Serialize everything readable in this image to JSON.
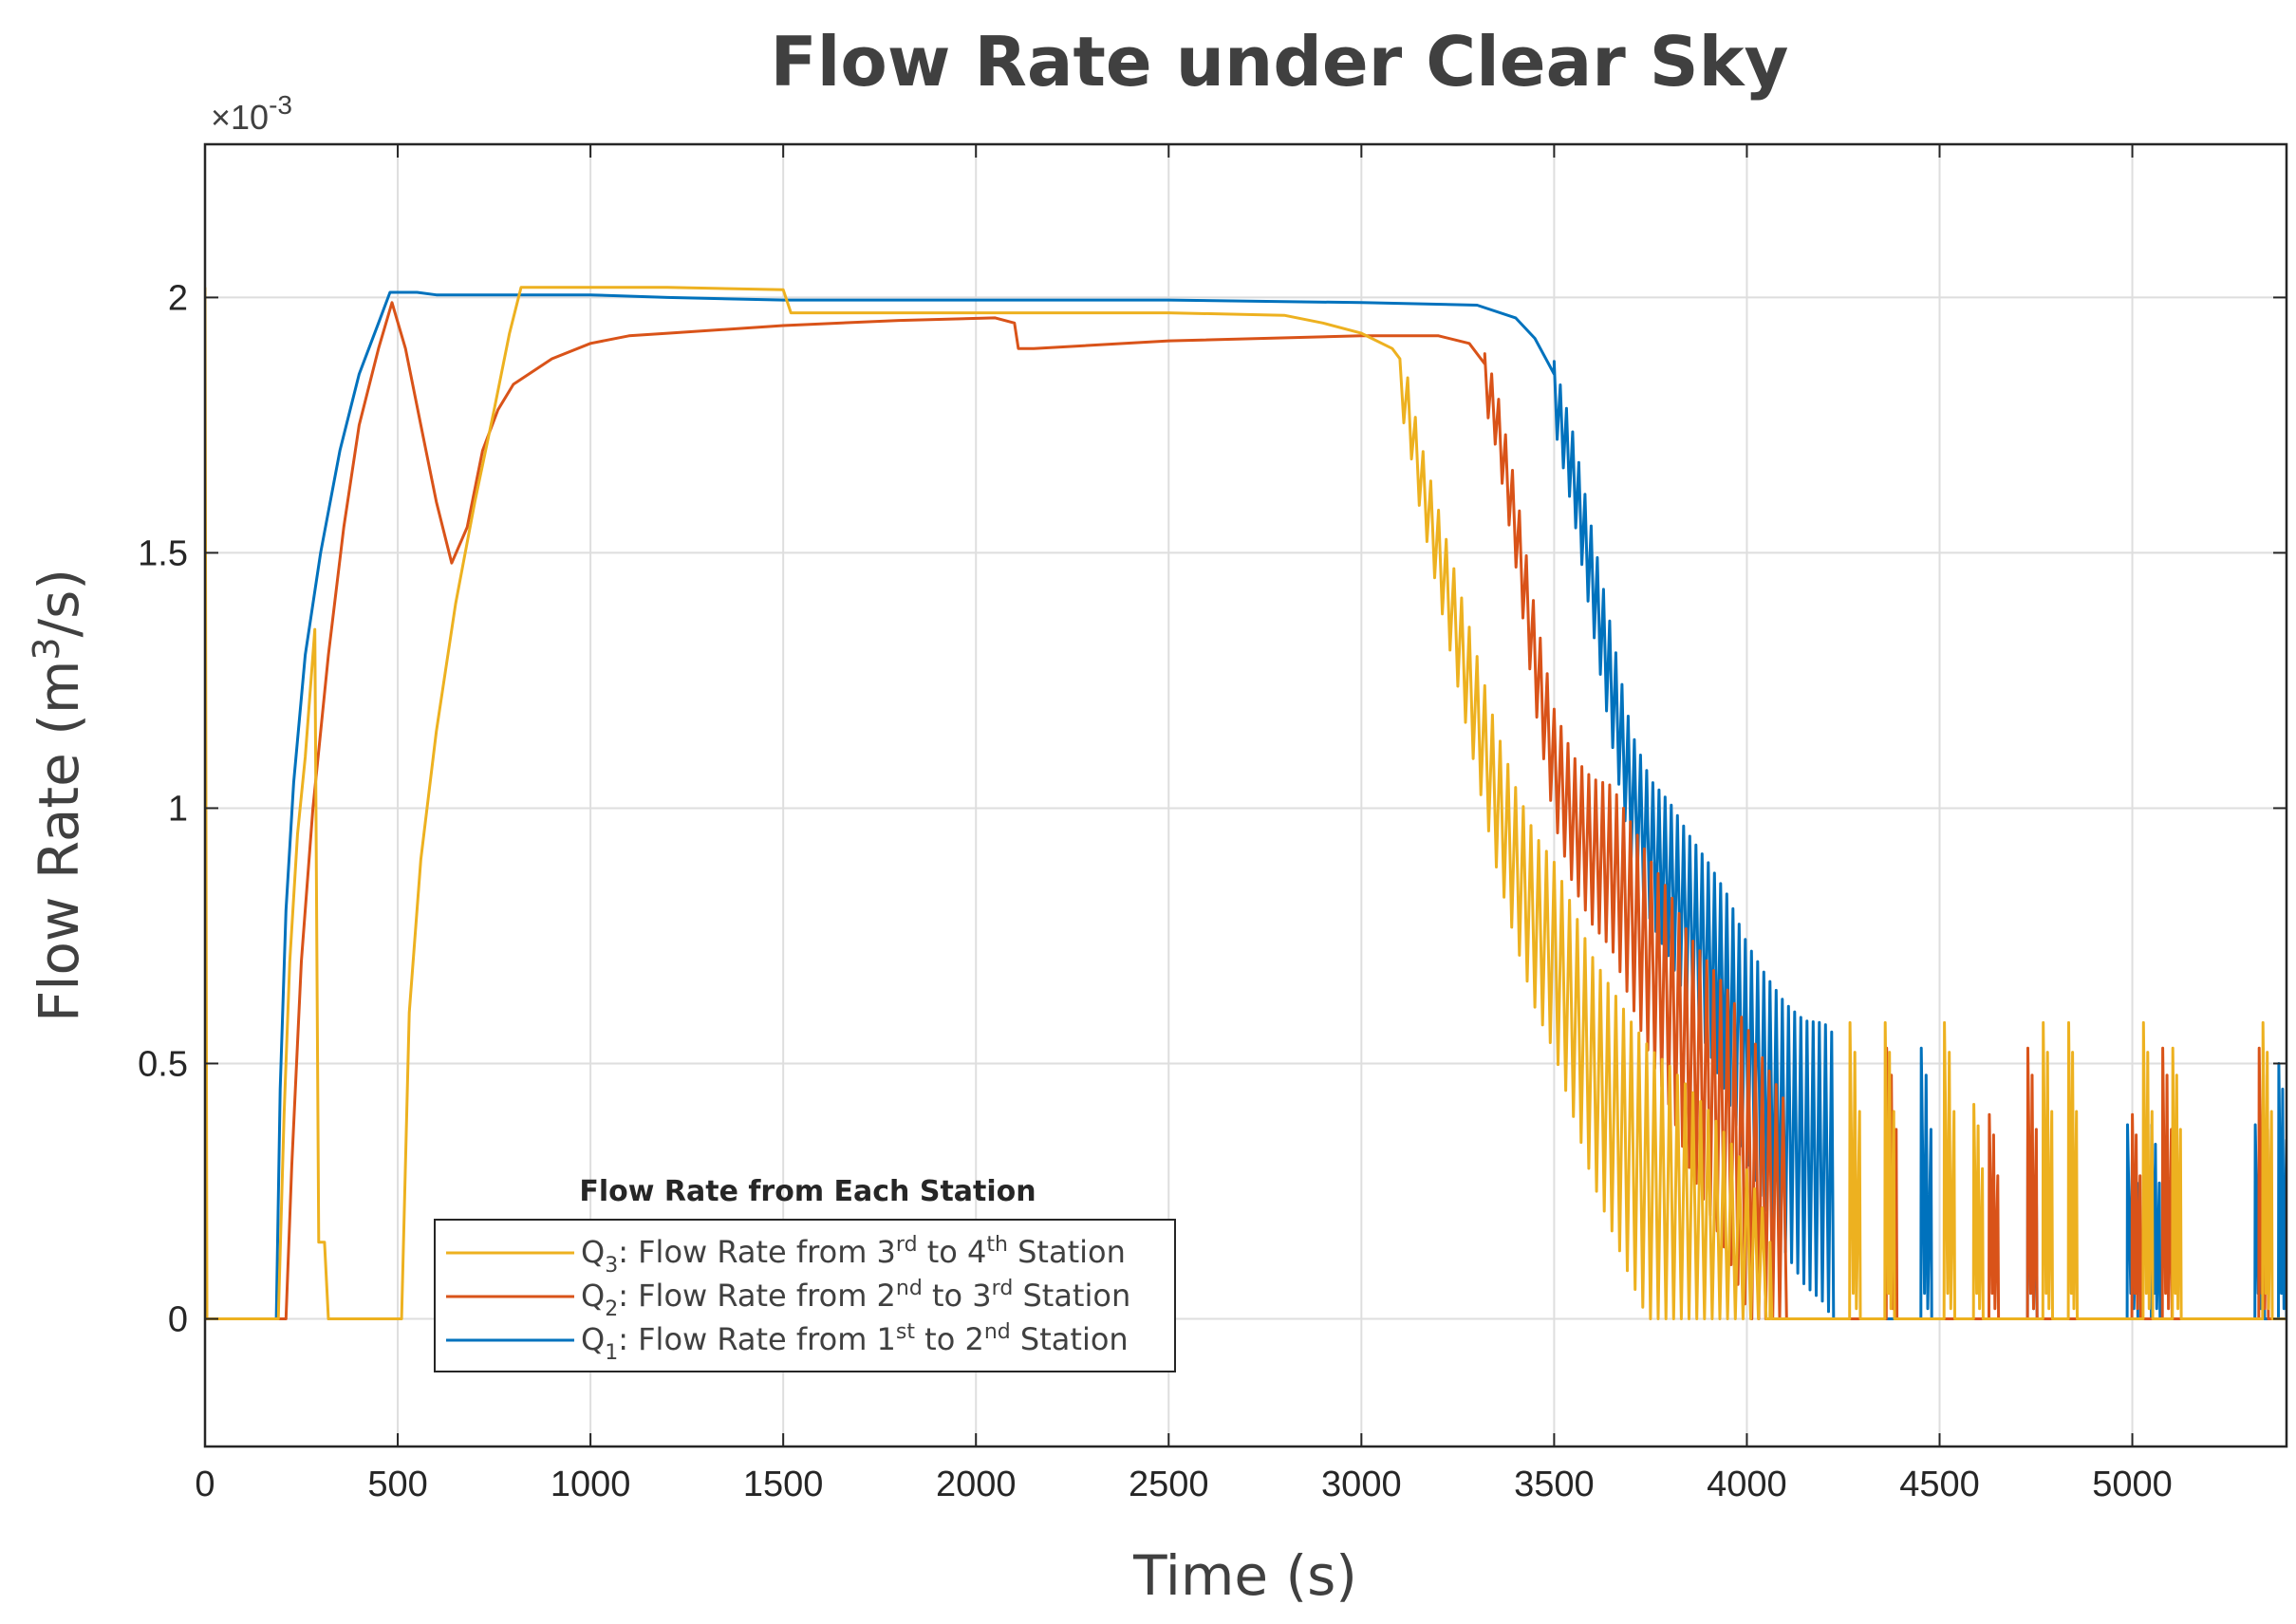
{
  "chart_data": {
    "type": "line",
    "title": "Flow Rate under Clear Sky",
    "xlabel": "Time (s)",
    "ylabel_prefix": "Flow Rate (m",
    "ylabel_sup": "3",
    "ylabel_suffix": "/s)",
    "y_exponent_prefix": "×10",
    "y_exponent_power": "-3",
    "xlim": [
      0,
      5400
    ],
    "ylim": [
      -0.25,
      2.3
    ],
    "xticks": [
      0,
      500,
      1000,
      1500,
      2000,
      2500,
      3000,
      3500,
      4000,
      4500,
      5000
    ],
    "xtick_labels": [
      "0",
      "500",
      "1000",
      "1500",
      "2000",
      "2500",
      "3000",
      "3500",
      "4000",
      "4500",
      "5000"
    ],
    "yticks": [
      0,
      0.5,
      1,
      1.5,
      2
    ],
    "ytick_labels": [
      "0",
      "0.5",
      "1",
      "1.5",
      "2"
    ],
    "grid": true,
    "legend": {
      "title": "Flow Rate from Each Station",
      "position": "bottom-left",
      "entries": [
        {
          "key": "q3",
          "sym": "Q",
          "sub": "3",
          "text_a": ": Flow Rate from 3",
          "sup_a": "rd",
          "text_b": " to 4",
          "sup_b": "th",
          "text_c": " Station"
        },
        {
          "key": "q2",
          "sym": "Q",
          "sub": "2",
          "text_a": ": Flow Rate from 2",
          "sup_a": "nd",
          "text_b": " to 3",
          "sup_b": "rd",
          "text_c": " Station"
        },
        {
          "key": "q1",
          "sym": "Q",
          "sub": "1",
          "text_a": ": Flow Rate from 1",
          "sup_a": "st",
          "text_b": " to 2",
          "sup_b": "nd",
          "text_c": " Station"
        }
      ]
    },
    "series": [
      {
        "key": "q1",
        "name": "Q1: Flow Rate from 1st to 2nd Station",
        "color": "#0072BD",
        "points": [
          [
            0,
            0
          ],
          [
            185,
            0
          ],
          [
            195,
            0.45
          ],
          [
            210,
            0.8
          ],
          [
            230,
            1.05
          ],
          [
            260,
            1.3
          ],
          [
            300,
            1.5
          ],
          [
            350,
            1.7
          ],
          [
            400,
            1.85
          ],
          [
            450,
            1.95
          ],
          [
            480,
            2.01
          ],
          [
            550,
            2.01
          ],
          [
            600,
            2.005
          ],
          [
            1000,
            2.005
          ],
          [
            1200,
            2.0
          ],
          [
            1500,
            1.995
          ],
          [
            2000,
            1.995
          ],
          [
            2500,
            1.995
          ],
          [
            3000,
            1.99
          ],
          [
            3300,
            1.985
          ],
          [
            3400,
            1.96
          ],
          [
            3450,
            1.92
          ],
          [
            3500,
            1.85
          ],
          [
            3550,
            1.7
          ],
          [
            3600,
            1.5
          ],
          [
            3650,
            1.3
          ],
          [
            3700,
            1.1
          ],
          [
            3750,
            1.0
          ],
          [
            3800,
            0.95
          ],
          [
            3850,
            0.88
          ],
          [
            3900,
            0.82
          ],
          [
            3950,
            0.75
          ],
          [
            4000,
            0.65
          ],
          [
            4050,
            0.58
          ],
          [
            4100,
            0.52
          ],
          [
            4150,
            0.48
          ],
          [
            4200,
            0.47
          ],
          [
            4220,
            0.45
          ]
        ],
        "osc": {
          "start": 3500,
          "end": 4225,
          "period": 16,
          "amp0": 0.1,
          "amp1": 0.45
        },
        "pulses": [
          [
            4465,
            0.53,
            25
          ],
          [
            4740,
            0.38,
            22
          ],
          [
            5000,
            0.38,
            25
          ],
          [
            5060,
            0.38,
            20
          ],
          [
            5330,
            0.38,
            22
          ],
          [
            5390,
            0.5,
            20
          ]
        ]
      },
      {
        "key": "q2",
        "name": "Q2: Flow Rate from 2nd to 3rd Station",
        "color": "#D95319",
        "points": [
          [
            0,
            0
          ],
          [
            210,
            0
          ],
          [
            225,
            0.3
          ],
          [
            250,
            0.7
          ],
          [
            280,
            1.0
          ],
          [
            320,
            1.3
          ],
          [
            360,
            1.55
          ],
          [
            400,
            1.75
          ],
          [
            450,
            1.9
          ],
          [
            485,
            1.99
          ],
          [
            520,
            1.9
          ],
          [
            560,
            1.75
          ],
          [
            600,
            1.6
          ],
          [
            640,
            1.48
          ],
          [
            680,
            1.55
          ],
          [
            720,
            1.7
          ],
          [
            760,
            1.78
          ],
          [
            800,
            1.83
          ],
          [
            900,
            1.88
          ],
          [
            1000,
            1.91
          ],
          [
            1100,
            1.925
          ],
          [
            1200,
            1.93
          ],
          [
            1500,
            1.945
          ],
          [
            1800,
            1.955
          ],
          [
            2050,
            1.96
          ],
          [
            2100,
            1.95
          ],
          [
            2110,
            1.9
          ],
          [
            2150,
            1.9
          ],
          [
            2500,
            1.915
          ],
          [
            3000,
            1.925
          ],
          [
            3200,
            1.925
          ],
          [
            3280,
            1.91
          ],
          [
            3320,
            1.87
          ],
          [
            3350,
            1.8
          ],
          [
            3400,
            1.6
          ],
          [
            3450,
            1.35
          ],
          [
            3500,
            1.15
          ],
          [
            3550,
            1.05
          ],
          [
            3600,
            1.0
          ],
          [
            3650,
            0.98
          ],
          [
            3700,
            0.9
          ],
          [
            3750,
            0.82
          ],
          [
            3800,
            0.75
          ],
          [
            3850,
            0.66
          ],
          [
            3900,
            0.6
          ],
          [
            3950,
            0.54
          ],
          [
            4000,
            0.46
          ],
          [
            4050,
            0.38
          ],
          [
            4100,
            0.3
          ],
          [
            4110,
            0.0
          ]
        ],
        "osc": {
          "start": 3320,
          "end": 4110,
          "period": 18,
          "amp0": 0.08,
          "amp1": 0.5
        },
        "pulses": [
          [
            4375,
            0.53,
            25
          ],
          [
            4640,
            0.4,
            22
          ],
          [
            4740,
            0.53,
            22
          ],
          [
            5010,
            0.4,
            20
          ],
          [
            5090,
            0.53,
            22
          ],
          [
            5340,
            0.53,
            22
          ]
        ]
      },
      {
        "key": "q3",
        "name": "Q3: Flow Rate from 3rd to 4th Station",
        "color": "#EDB120",
        "points": [
          [
            0,
            2.02
          ],
          [
            5,
            0
          ],
          [
            190,
            0
          ],
          [
            205,
            0.4
          ],
          [
            220,
            0.7
          ],
          [
            240,
            0.95
          ],
          [
            260,
            1.1
          ],
          [
            285,
            1.35
          ],
          [
            295,
            0.15
          ],
          [
            310,
            0.15
          ],
          [
            320,
            0
          ],
          [
            510,
            0
          ],
          [
            530,
            0.6
          ],
          [
            560,
            0.9
          ],
          [
            600,
            1.15
          ],
          [
            650,
            1.4
          ],
          [
            700,
            1.6
          ],
          [
            750,
            1.78
          ],
          [
            790,
            1.93
          ],
          [
            820,
            2.02
          ],
          [
            1000,
            2.02
          ],
          [
            1200,
            2.02
          ],
          [
            1500,
            2.015
          ],
          [
            1520,
            1.97
          ],
          [
            2000,
            1.97
          ],
          [
            2500,
            1.97
          ],
          [
            2800,
            1.965
          ],
          [
            2900,
            1.95
          ],
          [
            3000,
            1.93
          ],
          [
            3080,
            1.9
          ],
          [
            3120,
            1.82
          ],
          [
            3150,
            1.7
          ],
          [
            3200,
            1.55
          ],
          [
            3250,
            1.4
          ],
          [
            3300,
            1.25
          ],
          [
            3350,
            1.1
          ],
          [
            3400,
            0.98
          ],
          [
            3450,
            0.88
          ],
          [
            3500,
            0.82
          ],
          [
            3550,
            0.72
          ],
          [
            3600,
            0.62
          ],
          [
            3650,
            0.55
          ],
          [
            3700,
            0.48
          ],
          [
            3750,
            0.42
          ],
          [
            3800,
            0.38
          ],
          [
            3850,
            0.33
          ],
          [
            3900,
            0.28
          ],
          [
            3950,
            0.22
          ],
          [
            4000,
            0.15
          ],
          [
            4050,
            0.05
          ],
          [
            4060,
            0.0
          ]
        ],
        "osc": {
          "start": 3100,
          "end": 4060,
          "period": 20,
          "amp0": 0.08,
          "amp1": 0.6
        },
        "pulses": [
          [
            4280,
            0.58,
            25
          ],
          [
            4370,
            0.58,
            22
          ],
          [
            4525,
            0.58,
            25
          ],
          [
            4600,
            0.42,
            22
          ],
          [
            4780,
            0.58,
            22
          ],
          [
            4845,
            0.58,
            20
          ],
          [
            5040,
            0.58,
            22
          ],
          [
            5115,
            0.53,
            20
          ],
          [
            5350,
            0.58,
            22
          ]
        ]
      }
    ]
  }
}
